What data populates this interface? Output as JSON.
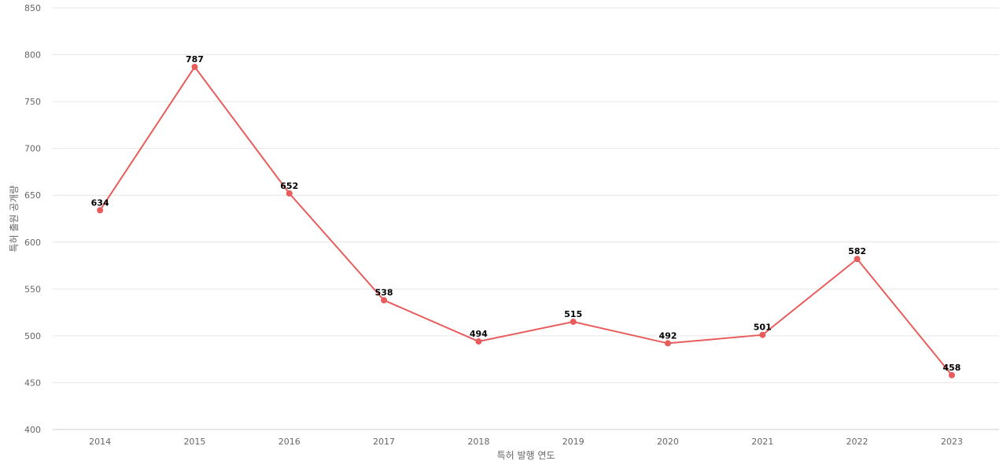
{
  "chart_data": {
    "type": "line",
    "title": "",
    "xlabel": "특허 발행 연도",
    "ylabel": "특허 출원 공개량",
    "x": [
      "2014",
      "2015",
      "2016",
      "2017",
      "2018",
      "2019",
      "2020",
      "2021",
      "2022",
      "2023"
    ],
    "series": [
      {
        "values": [
          634,
          787,
          652,
          538,
          494,
          515,
          492,
          501,
          582,
          458
        ]
      }
    ],
    "ylim": [
      400,
      850
    ],
    "yticks": [
      400,
      450,
      500,
      550,
      600,
      650,
      700,
      750,
      800,
      850
    ],
    "grid": true,
    "legend": "none",
    "colors": {
      "line": "#e85c5c",
      "grid": "#e6e6e6"
    }
  }
}
